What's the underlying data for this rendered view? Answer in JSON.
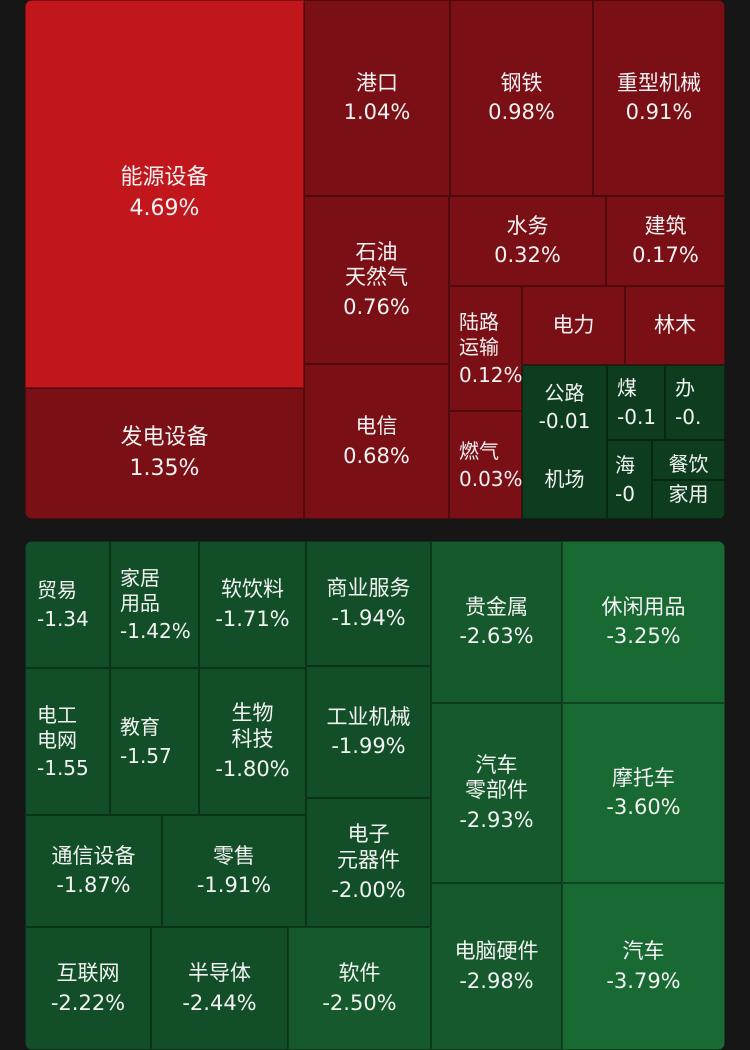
{
  "chart_data": {
    "type": "treemap",
    "gainers": [
      {
        "name": "能源设备",
        "change": "4.69%"
      },
      {
        "name": "发电设备",
        "change": "1.35%"
      },
      {
        "name": "港口",
        "change": "1.04%"
      },
      {
        "name": "钢铁",
        "change": "0.98%"
      },
      {
        "name": "重型机械",
        "change": "0.91%"
      },
      {
        "name": "石油\n天然气",
        "change": "0.76%"
      },
      {
        "name": "水务",
        "change": "0.32%"
      },
      {
        "name": "建筑",
        "change": "0.17%"
      },
      {
        "name": "陆路\n运输",
        "change": "0.12%"
      },
      {
        "name": "电力",
        "change": ""
      },
      {
        "name": "林木",
        "change": ""
      },
      {
        "name": "电信",
        "change": "0.68%"
      },
      {
        "name": "燃气",
        "change": "0.03%"
      },
      {
        "name": "公路",
        "change": "-0.01"
      },
      {
        "name": "机场",
        "change": ""
      },
      {
        "name": "煤",
        "change": "-0.1"
      },
      {
        "name": "办",
        "change": "-0."
      },
      {
        "name": "海",
        "change": "-0"
      },
      {
        "name": "餐饮",
        "change": ""
      },
      {
        "name": "家用",
        "change": ""
      }
    ],
    "losers": [
      {
        "name": "贸易",
        "change": "-1.34"
      },
      {
        "name": "家居\n用品",
        "change": "-1.42%"
      },
      {
        "name": "软饮料",
        "change": "-1.71%"
      },
      {
        "name": "商业服务",
        "change": "-1.94%"
      },
      {
        "name": "贵金属",
        "change": "-2.63%"
      },
      {
        "name": "休闲用品",
        "change": "-3.25%"
      },
      {
        "name": "电工\n电网",
        "change": "-1.55"
      },
      {
        "name": "教育",
        "change": "-1.57"
      },
      {
        "name": "生物\n科技",
        "change": "-1.80%"
      },
      {
        "name": "工业机械",
        "change": "-1.99%"
      },
      {
        "name": "汽车\n零部件",
        "change": "-2.93%"
      },
      {
        "name": "摩托车",
        "change": "-3.60%"
      },
      {
        "name": "通信设备",
        "change": "-1.87%"
      },
      {
        "name": "零售",
        "change": "-1.91%"
      },
      {
        "name": "电子\n元器件",
        "change": "-2.00%"
      },
      {
        "name": "互联网",
        "change": "-2.22%"
      },
      {
        "name": "半导体",
        "change": "-2.44%"
      },
      {
        "name": "软件",
        "change": "-2.50%"
      },
      {
        "name": "电脑硬件",
        "change": "-2.98%"
      },
      {
        "name": "汽车",
        "change": "-3.79%"
      }
    ]
  },
  "colors": {
    "strong_gain": "#c0161c",
    "gain": "#7a1016",
    "flat_loss": "#0d3d1e",
    "loss": "#124f28",
    "mid_loss": "#15592c",
    "big_loss": "#196933",
    "background": "#161616"
  }
}
